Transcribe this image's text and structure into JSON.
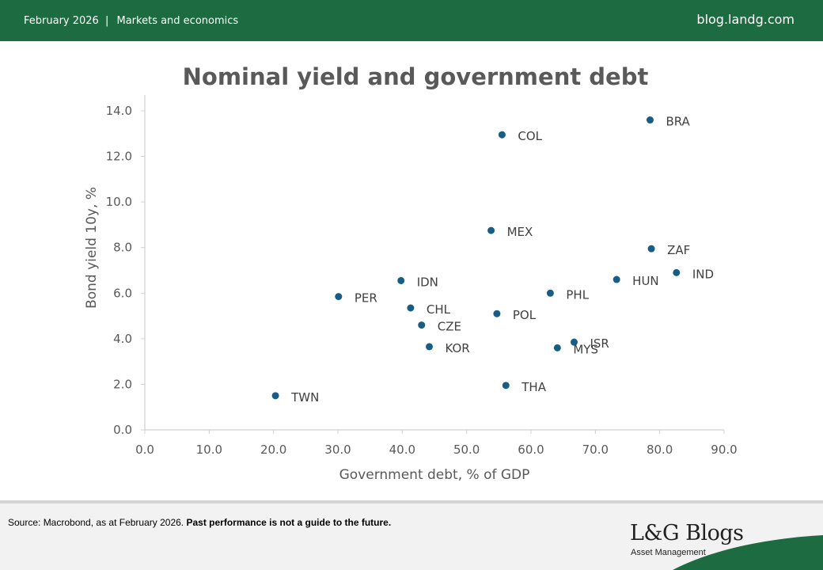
{
  "header": {
    "date": "February 2026",
    "separator": "|",
    "category": "Markets and economics",
    "site": "blog.landg.com"
  },
  "footer": {
    "source": "Source: Macrobond, as at February 2026.",
    "disclaimer": "Past performance is not a guide to the future.",
    "logo": "L&G Blogs",
    "logo_subtitle": "Asset Management"
  },
  "colors": {
    "brand_green": "#1d6b40",
    "marker": "#185d85",
    "axis_text": "#595959"
  },
  "chart_data": {
    "type": "scatter",
    "title": "Nominal yield and government debt",
    "xlabel": "Government debt, % of GDP",
    "ylabel": "Bond yield 10y, %",
    "xlim": [
      0,
      90
    ],
    "ylim": [
      0,
      14
    ],
    "xticks": [
      "0.0",
      "10.0",
      "20.0",
      "30.0",
      "40.0",
      "50.0",
      "60.0",
      "70.0",
      "80.0",
      "90.0"
    ],
    "yticks": [
      "0.0",
      "2.0",
      "4.0",
      "6.0",
      "8.0",
      "10.0",
      "12.0",
      "14.0"
    ],
    "grid": false,
    "points": [
      {
        "label": "BRA",
        "x": 78.5,
        "y": 13.6
      },
      {
        "label": "COL",
        "x": 55.5,
        "y": 12.95
      },
      {
        "label": "MEX",
        "x": 53.8,
        "y": 8.75
      },
      {
        "label": "ZAF",
        "x": 78.7,
        "y": 7.95
      },
      {
        "label": "IND",
        "x": 82.6,
        "y": 6.9
      },
      {
        "label": "HUN",
        "x": 73.3,
        "y": 6.6
      },
      {
        "label": "IDN",
        "x": 39.8,
        "y": 6.55
      },
      {
        "label": "PHL",
        "x": 63.0,
        "y": 6.0
      },
      {
        "label": "PER",
        "x": 30.1,
        "y": 5.85
      },
      {
        "label": "CHL",
        "x": 41.3,
        "y": 5.35
      },
      {
        "label": "POL",
        "x": 54.7,
        "y": 5.1
      },
      {
        "label": "CZE",
        "x": 43.0,
        "y": 4.6
      },
      {
        "label": "ISR",
        "x": 66.7,
        "y": 3.85
      },
      {
        "label": "KOR",
        "x": 44.2,
        "y": 3.65
      },
      {
        "label": "MYS",
        "x": 64.1,
        "y": 3.6
      },
      {
        "label": "THA",
        "x": 56.1,
        "y": 1.95
      },
      {
        "label": "TWN",
        "x": 20.3,
        "y": 1.5
      }
    ]
  }
}
